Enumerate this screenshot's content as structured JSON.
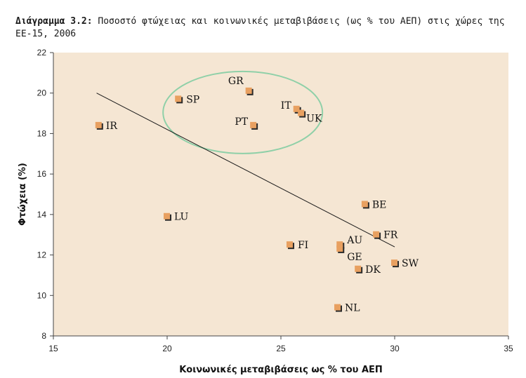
{
  "caption": {
    "lead": "Διάγραμμα 3.2:",
    "text": " Ποσοστό φτώχειας και κοινωνικές μεταβιβάσεις (ως % του ΑΕΠ) στις χώρες της ΕΕ-15, 2006"
  },
  "chart_data": {
    "type": "scatter",
    "title": "Διάγραμμα 3.2: Ποσοστό φτώχειας και κοινωνικές μεταβιβάσεις (ως % του ΑΕΠ) στις χώρες της ΕΕ-15, 2006",
    "xlabel": "Κοινωνικές μεταβιβάσεις ως % του ΑΕΠ",
    "ylabel": "Φτώχεια (%)",
    "xlim": [
      15,
      35
    ],
    "ylim": [
      8,
      22
    ],
    "xticks": [
      "15",
      "20",
      "25",
      "30",
      "35"
    ],
    "yticks": [
      "8",
      "10",
      "12",
      "14",
      "16",
      "18",
      "20",
      "22"
    ],
    "grid": false,
    "points": [
      {
        "label": "IR",
        "x": 17.0,
        "y": 18.4
      },
      {
        "label": "SP",
        "x": 20.5,
        "y": 19.7
      },
      {
        "label": "GR",
        "x": 23.6,
        "y": 20.1
      },
      {
        "label": "PT",
        "x": 23.8,
        "y": 18.4
      },
      {
        "label": "IT",
        "x": 25.7,
        "y": 19.2
      },
      {
        "label": "UK",
        "x": 25.9,
        "y": 19.0
      },
      {
        "label": "LU",
        "x": 20.0,
        "y": 13.9
      },
      {
        "label": "FI",
        "x": 25.4,
        "y": 12.5
      },
      {
        "label": "AU",
        "x": 27.6,
        "y": 12.5
      },
      {
        "label": "GE",
        "x": 27.6,
        "y": 12.3
      },
      {
        "label": "BE",
        "x": 28.7,
        "y": 14.5
      },
      {
        "label": "FR",
        "x": 29.2,
        "y": 13.0
      },
      {
        "label": "SW",
        "x": 30.0,
        "y": 11.6
      },
      {
        "label": "DK",
        "x": 28.4,
        "y": 11.3
      },
      {
        "label": "NL",
        "x": 27.5,
        "y": 9.4
      }
    ],
    "trendline": {
      "x1": 16.9,
      "y1": 20.0,
      "x2": 30.0,
      "y2": 12.4
    },
    "highlight_group": [
      "GR",
      "SP",
      "PT",
      "IT",
      "UK"
    ],
    "colors": {
      "plot_background": "#f5e6d3",
      "marker": "#e8a060",
      "marker_shadow": "#2a2a2a",
      "trendline": "#1a1a1a",
      "ellipse": "#8fd0a8"
    }
  }
}
